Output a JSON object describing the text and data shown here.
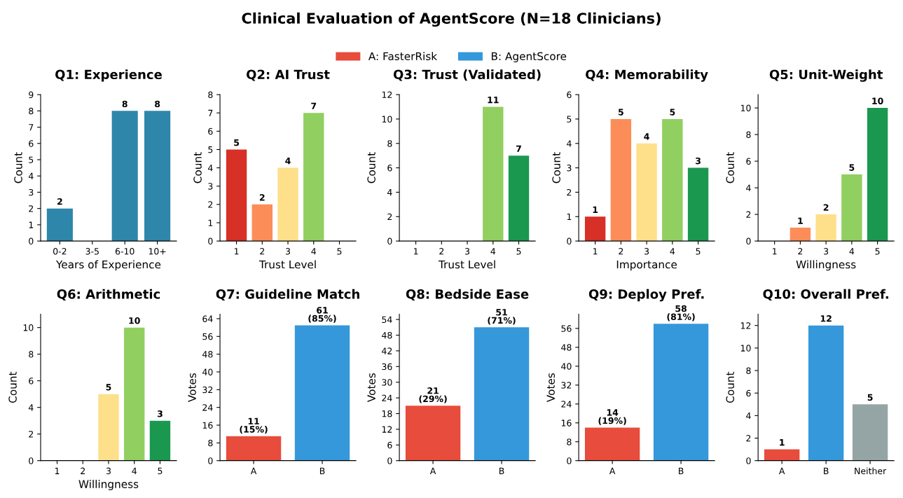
{
  "chart_data": [
    {
      "type": "other",
      "title": "Clinical Evaluation of AgentScore (N=18 Clinicians)"
    },
    {
      "type": "bar",
      "title": "Q1: Experience",
      "xlabel": "Years of Experience",
      "ylabel": "Count",
      "categories": [
        "0-2",
        "3-5",
        "6-10",
        "10+"
      ],
      "values": [
        2,
        0,
        8,
        8
      ],
      "colors": [
        "#2e86ab",
        "#2e86ab",
        "#2e86ab",
        "#2e86ab"
      ],
      "value_labels": [
        "2",
        null,
        "8",
        "8"
      ],
      "ylim": [
        0,
        9
      ],
      "yticks": [
        0,
        1,
        2,
        3,
        4,
        5,
        6,
        7,
        8,
        9
      ]
    },
    {
      "type": "bar",
      "title": "Q2: AI Trust",
      "xlabel": "Trust Level",
      "ylabel": "Count",
      "categories": [
        "1",
        "2",
        "3",
        "4",
        "5"
      ],
      "values": [
        5,
        2,
        4,
        7,
        0
      ],
      "colors": [
        "#d73027",
        "#fc8d59",
        "#fee08b",
        "#91cf60",
        "#1a9850"
      ],
      "value_labels": [
        "5",
        "2",
        "4",
        "7",
        null
      ],
      "ylim": [
        0,
        8
      ],
      "yticks": [
        0,
        1,
        2,
        3,
        4,
        5,
        6,
        7,
        8
      ]
    },
    {
      "type": "bar",
      "title": "Q3: Trust (Validated)",
      "xlabel": "Trust Level",
      "ylabel": "Count",
      "categories": [
        "1",
        "2",
        "3",
        "4",
        "5"
      ],
      "values": [
        0,
        0,
        0,
        11,
        7
      ],
      "colors": [
        "#d73027",
        "#fc8d59",
        "#fee08b",
        "#91cf60",
        "#1a9850"
      ],
      "value_labels": [
        null,
        null,
        null,
        "11",
        "7"
      ],
      "ylim": [
        0,
        12
      ],
      "yticks": [
        0,
        2,
        4,
        6,
        8,
        10,
        12
      ]
    },
    {
      "type": "bar",
      "title": "Q4: Memorability",
      "xlabel": "Importance",
      "ylabel": "Count",
      "categories": [
        "1",
        "2",
        "3",
        "4",
        "5"
      ],
      "values": [
        1,
        5,
        4,
        5,
        3
      ],
      "colors": [
        "#d73027",
        "#fc8d59",
        "#fee08b",
        "#91cf60",
        "#1a9850"
      ],
      "value_labels": [
        "1",
        "5",
        "4",
        "5",
        "3"
      ],
      "ylim": [
        0,
        6
      ],
      "yticks": [
        0,
        1,
        2,
        3,
        4,
        5,
        6
      ]
    },
    {
      "type": "bar",
      "title": "Q5: Unit-Weight",
      "xlabel": "Willingness",
      "ylabel": "Count",
      "categories": [
        "1",
        "2",
        "3",
        "4",
        "5"
      ],
      "values": [
        0,
        1,
        2,
        5,
        10
      ],
      "colors": [
        "#d73027",
        "#fc8d59",
        "#fee08b",
        "#91cf60",
        "#1a9850"
      ],
      "value_labels": [
        null,
        "1",
        "2",
        "5",
        "10"
      ],
      "ylim": [
        0,
        11
      ],
      "yticks": [
        0,
        2,
        4,
        6,
        8,
        10
      ]
    },
    {
      "type": "bar",
      "title": "Q6: Arithmetic",
      "xlabel": "Willingness",
      "ylabel": "Count",
      "categories": [
        "1",
        "2",
        "3",
        "4",
        "5"
      ],
      "values": [
        0,
        0,
        5,
        10,
        3
      ],
      "colors": [
        "#d73027",
        "#fc8d59",
        "#fee08b",
        "#91cf60",
        "#1a9850"
      ],
      "value_labels": [
        null,
        null,
        "5",
        "10",
        "3"
      ],
      "ylim": [
        0,
        11
      ],
      "yticks": [
        0,
        2,
        4,
        6,
        8,
        10
      ]
    },
    {
      "type": "bar",
      "title": "Q7: Guideline Match",
      "ylabel": "Votes",
      "categories": [
        "A",
        "B"
      ],
      "legend": "top",
      "series": [
        {
          "name": "A: FasterRisk",
          "color": "#e74c3c",
          "values": [
            11,
            null
          ],
          "value_labels": [
            "11\n(15%)",
            null
          ]
        },
        {
          "name": "B: AgentScore",
          "color": "#3498db",
          "values": [
            null,
            61
          ],
          "value_labels": [
            null,
            "61\n(85%)"
          ]
        }
      ],
      "ylim": [
        0,
        66
      ],
      "yticks": [
        0,
        8,
        16,
        24,
        32,
        40,
        48,
        56,
        64
      ]
    },
    {
      "type": "bar",
      "title": "Q8: Bedside Ease",
      "ylabel": "Votes",
      "categories": [
        "A",
        "B"
      ],
      "values": [
        21,
        51
      ],
      "colors": [
        "#e74c3c",
        "#3498db"
      ],
      "value_labels": [
        "21\n(29%)",
        "51\n(71%)"
      ],
      "ylim": [
        0,
        56
      ],
      "yticks": [
        0,
        6,
        12,
        18,
        24,
        30,
        36,
        42,
        48,
        54
      ]
    },
    {
      "type": "bar",
      "title": "Q9: Deploy Pref.",
      "ylabel": "Votes",
      "categories": [
        "A",
        "B"
      ],
      "values": [
        14,
        58
      ],
      "colors": [
        "#e74c3c",
        "#3498db"
      ],
      "value_labels": [
        "14\n(19%)",
        "58\n(81%)"
      ],
      "ylim": [
        0,
        62
      ],
      "yticks": [
        0,
        8,
        16,
        24,
        32,
        40,
        48,
        56
      ]
    },
    {
      "type": "bar",
      "title": "Q10: Overall Pref.",
      "ylabel": "Count",
      "categories": [
        "A",
        "B",
        "Neither"
      ],
      "values": [
        1,
        12,
        5
      ],
      "colors": [
        "#e74c3c",
        "#3498db",
        "#95a5a6"
      ],
      "value_labels": [
        "1",
        "12",
        "5"
      ],
      "ylim": [
        0,
        13
      ],
      "yticks": [
        0,
        2,
        4,
        6,
        8,
        10,
        12
      ]
    }
  ]
}
